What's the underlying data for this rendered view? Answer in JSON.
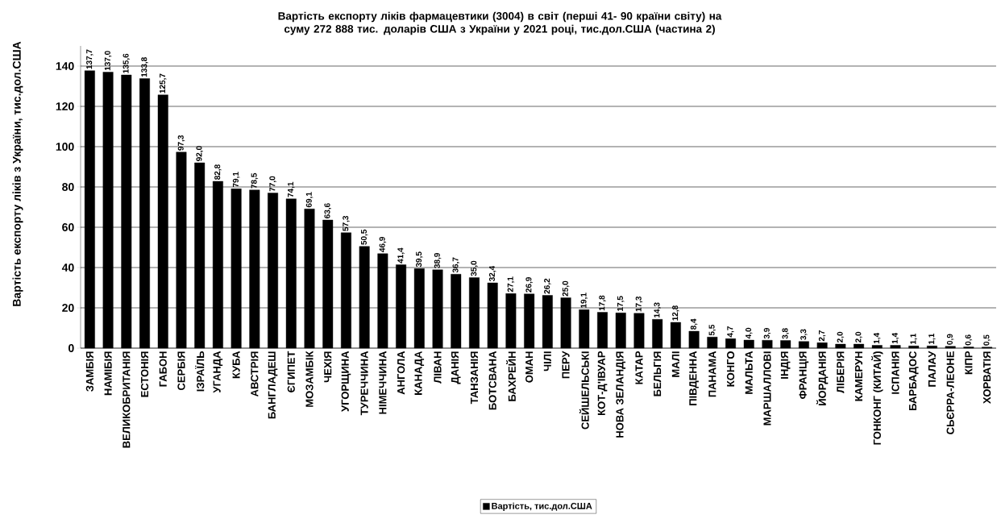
{
  "chart_data": {
    "type": "bar",
    "title": "Вартість експорту ліків фармацевтики (3004) в світ (перші 41- 90 країни світу) на суму 272 888 тис. доларів США з України у 2021 році, тис.дол.США (частина 2)",
    "ylabel": "Вартість експорту ліків з України, тис.дол.США",
    "categories": [
      "ЗАМБІЯ",
      "НАМІБІЯ",
      "ВЕЛИКОБРИТАНІЯ",
      "ЕСТОНІЯ",
      "ГАБОН",
      "СЕРБІЯ",
      "ІЗРАЇЛЬ",
      "УГАНДА",
      "КУБА",
      "АВСТРІЯ",
      "БАНГЛАДЕШ",
      "ЄГИПЕТ",
      "МОЗАМБІК",
      "ЧЕХІЯ",
      "УГОРЩИНА",
      "ТУРЕЧЧИНА",
      "НІМЕЧЧИНА",
      "АНГОЛА",
      "КАНАДА",
      "ЛІВАН",
      "ДАНІЯ",
      "ТАНЗАНІЯ",
      "БОТСВАНА",
      "БАХРЕЙН",
      "ОМАН",
      "ЧІЛІ",
      "ПЕРУ",
      "СЕЙШЕЛЬСЬКІ",
      "КОТ-Д'ІВУАР",
      "НОВА ЗЕЛАНДІЯ",
      "КАТАР",
      "БЕЛЬГІЯ",
      "МАЛІ",
      "ПІВДЕННА",
      "ПАНАМА",
      "КОНГО",
      "МАЛЬТА",
      "МАРШАЛЛОВІ",
      "ІНДІЯ",
      "ФРАНЦІЯ",
      "ЙОРДАНІЯ",
      "ЛІБЕРІЯ",
      "КАМЕРУН",
      "ГОНКОНГ (КИТАЙ)",
      "ІСПАНІЯ",
      "БАРБАДОС",
      "ПАЛАУ",
      "СЬЄРРА-ЛЕОНЕ",
      "КІПР",
      "ХОРВАТІЯ"
    ],
    "series": [
      {
        "name": "Вартість, тис.дол.США",
        "color": "#000000",
        "values": [
          137.7,
          137.0,
          135.6,
          133.8,
          125.7,
          97.3,
          92.0,
          82.8,
          79.1,
          78.5,
          77.0,
          74.1,
          69.1,
          63.6,
          57.3,
          50.5,
          46.9,
          41.4,
          39.5,
          38.9,
          36.7,
          35.0,
          32.4,
          27.1,
          26.9,
          26.2,
          25.0,
          19.1,
          17.8,
          17.5,
          17.3,
          14.3,
          12.8,
          8.4,
          5.5,
          4.7,
          4.0,
          3.9,
          3.8,
          3.3,
          2.7,
          2.0,
          2.0,
          1.4,
          1.4,
          1.1,
          1.1,
          0.9,
          0.6,
          0.5
        ],
        "value_labels": [
          "137,7",
          "137,0",
          "135,6",
          "133,8",
          "125,7",
          "97,3",
          "92,0",
          "82,8",
          "79,1",
          "78,5",
          "77,0",
          "74,1",
          "69,1",
          "63,6",
          "57,3",
          "50,5",
          "46,9",
          "41,4",
          "39,5",
          "38,9",
          "36,7",
          "35,0",
          "32,4",
          "27,1",
          "26,9",
          "26,2",
          "25,0",
          "19,1",
          "17,8",
          "17,5",
          "17,3",
          "14,3",
          "12,8",
          "8,4",
          "5,5",
          "4,7",
          "4,0",
          "3,9",
          "3,8",
          "3,3",
          "2,7",
          "2,0",
          "2,0",
          "1,4",
          "1,4",
          "1,1",
          "1,1",
          "0,9",
          "0,6",
          "0,5"
        ]
      }
    ],
    "ylim": [
      0,
      150
    ],
    "yticks": [
      0,
      20,
      40,
      60,
      80,
      100,
      120,
      140
    ],
    "grid": "y",
    "legend": "bottom"
  }
}
